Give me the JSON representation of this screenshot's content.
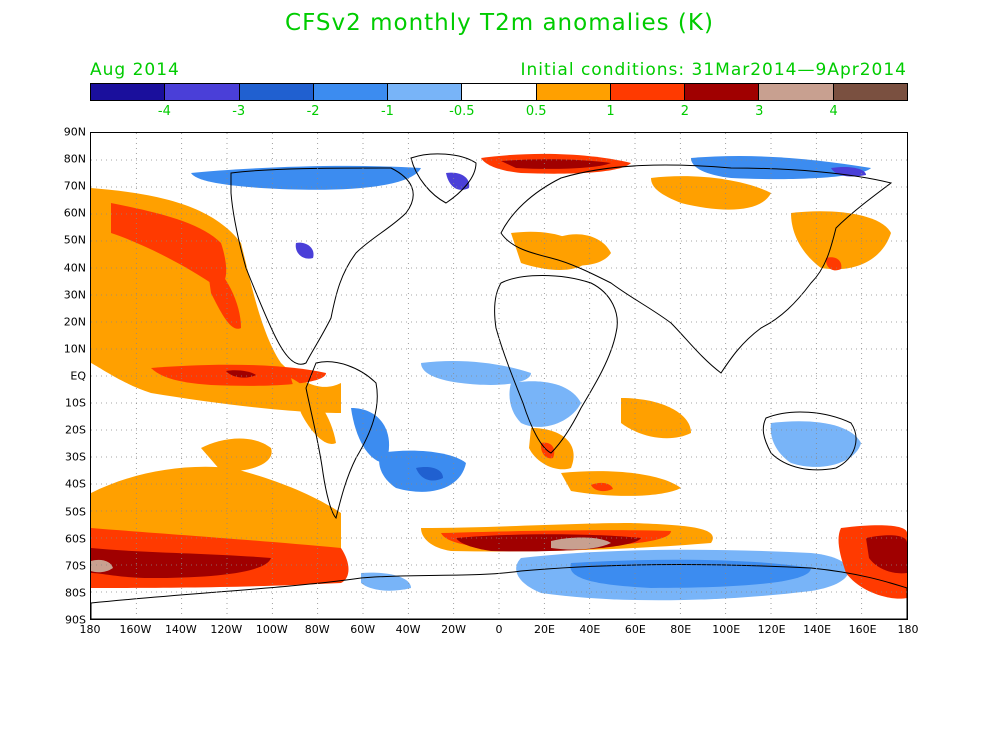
{
  "title": "CFSv2 monthly T2m anomalies (K)",
  "subtitle_left": "Aug 2014",
  "subtitle_right": "Initial conditions: 31Mar2014—9Apr2014",
  "colorbar": {
    "colors": [
      "#1a0f9c",
      "#4a3fd8",
      "#2060d0",
      "#3c8cf0",
      "#78b4f8",
      "#ffffff",
      "#ffa000",
      "#ff3a00",
      "#a00000",
      "#c8a090",
      "#7a5040"
    ],
    "tick_labels": [
      "-4",
      "-3",
      "-2",
      "-1",
      "-0.5",
      "0.5",
      "1",
      "2",
      "3",
      "4"
    ]
  },
  "map": {
    "lat_labels": [
      "90N",
      "80N",
      "70N",
      "60N",
      "50N",
      "40N",
      "30N",
      "20N",
      "10N",
      "EQ",
      "10S",
      "20S",
      "30S",
      "40S",
      "50S",
      "60S",
      "70S",
      "80S",
      "90S"
    ],
    "lon_labels": [
      "180",
      "160W",
      "140W",
      "120W",
      "100W",
      "80W",
      "60W",
      "40W",
      "20W",
      "0",
      "20E",
      "40E",
      "60E",
      "80E",
      "100E",
      "120E",
      "140E",
      "160E",
      "180"
    ],
    "gridlines": "dotted",
    "projection": "cylindrical-equidistant"
  }
}
